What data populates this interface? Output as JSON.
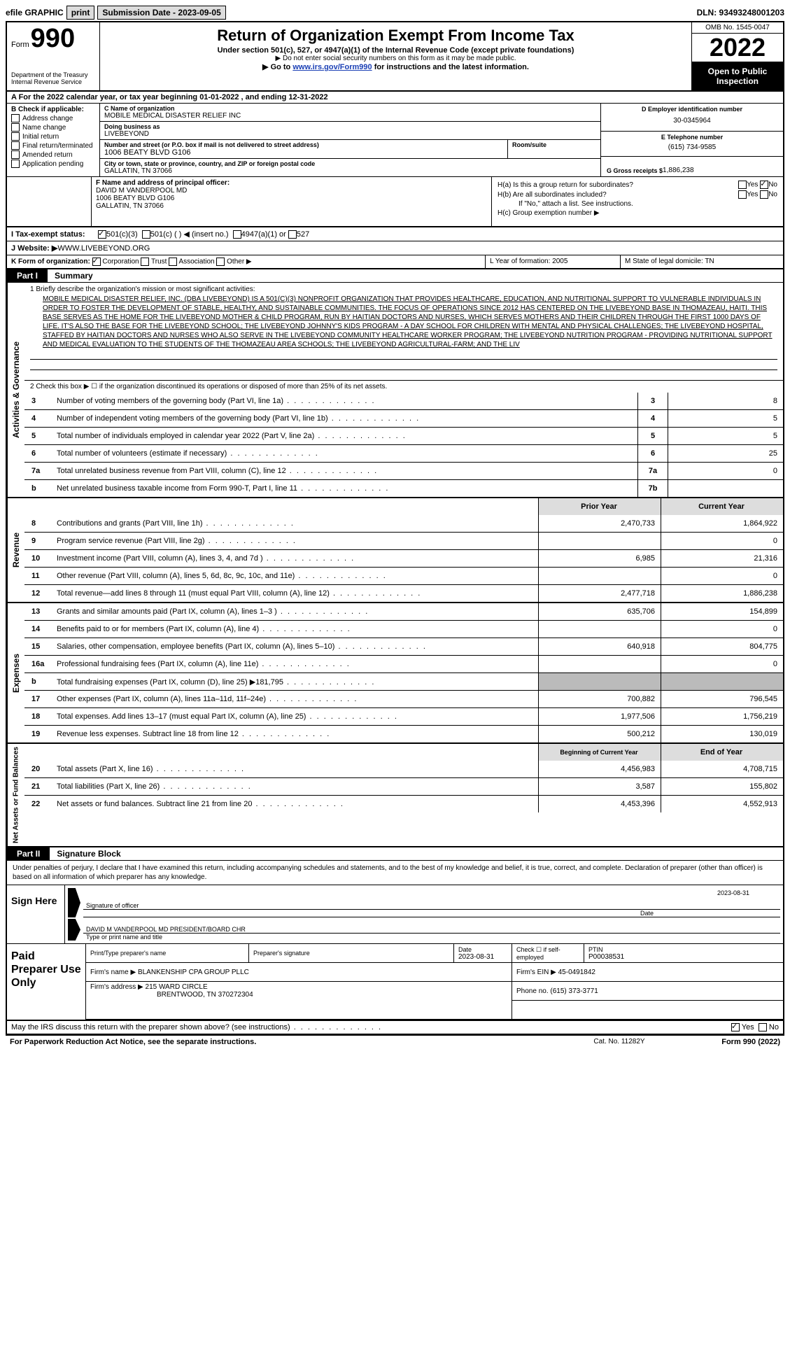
{
  "topbar": {
    "efile": "efile GRAPHIC",
    "print": "print",
    "subdate_label": "Submission Date - ",
    "subdate": "2023-09-05",
    "dln": "DLN: 93493248001203"
  },
  "header": {
    "formword": "Form",
    "formnum": "990",
    "dept": "Department of the Treasury Internal Revenue Service",
    "title": "Return of Organization Exempt From Income Tax",
    "subtitle": "Under section 501(c), 527, or 4947(a)(1) of the Internal Revenue Code (except private foundations)",
    "note1": "▶ Do not enter social security numbers on this form as it may be made public.",
    "goto_pre": "▶ Go to ",
    "goto_link": "www.irs.gov/Form990",
    "goto_post": " for instructions and the latest information.",
    "omb": "OMB No. 1545-0047",
    "year": "2022",
    "opento": "Open to Public Inspection"
  },
  "rowA": "A For the 2022 calendar year, or tax year beginning 01-01-2022   , and ending 12-31-2022",
  "colB": {
    "label": "B Check if applicable:",
    "items": [
      "Address change",
      "Name change",
      "Initial return",
      "Final return/terminated",
      "Amended return",
      "Application pending"
    ]
  },
  "colC": {
    "namelabel": "C Name of organization",
    "name": "MOBILE MEDICAL DISASTER RELIEF INC",
    "dbalabel": "Doing business as",
    "dba": "LIVEBEYOND",
    "addrlabel": "Number and street (or P.O. box if mail is not delivered to street address)",
    "addr": "1006 BEATY BLVD G106",
    "roomlabel": "Room/suite",
    "citylabel": "City or town, state or province, country, and ZIP or foreign postal code",
    "city": "GALLATIN, TN  37066"
  },
  "colD": {
    "label": "D Employer identification number",
    "val": "30-0345964"
  },
  "colE": {
    "label": "E Telephone number",
    "val": "(615) 734-9585"
  },
  "colG": {
    "label": "G Gross receipts $",
    "val": "1,886,238"
  },
  "colF": {
    "label": "F  Name and address of principal officer:",
    "lines": [
      "DAVID M VANDERPOOL MD",
      "1006 BEATY BLVD G106",
      "GALLATIN, TN  37066"
    ]
  },
  "colH": {
    "a": "H(a)  Is this a group return for subordinates?",
    "b": "H(b)  Are all subordinates included?",
    "bnote": "If \"No,\" attach a list. See instructions.",
    "c": "H(c)  Group exemption number ▶"
  },
  "rowI": {
    "label": "I   Tax-exempt status:",
    "opts": [
      "501(c)(3)",
      "501(c) (  ) ◀ (insert no.)",
      "4947(a)(1) or",
      "527"
    ]
  },
  "rowJ": {
    "label": "J  Website: ▶",
    "val": "  WWW.LIVEBEYOND.ORG"
  },
  "rowK": {
    "left": "K Form of organization:",
    "opts": [
      "Corporation",
      "Trust",
      "Association",
      "Other ▶"
    ],
    "mid": "L Year of formation: 2005",
    "right": "M State of legal domicile: TN"
  },
  "part1": {
    "tab": "Part I",
    "title": "Summary",
    "q1label": "1   Briefly describe the organization's mission or most significant activities:",
    "mission": "MOBILE MEDICAL DISASTER RELIEF, INC. (DBA LIVEBEYOND) IS A 501(C)(3) NONPROFIT ORGANIZATION THAT PROVIDES HEALTHCARE, EDUCATION, AND NUTRITIONAL SUPPORT TO VULNERABLE INDIVIDUALS IN ORDER TO FOSTER THE DEVELOPMENT OF STABLE, HEALTHY, AND SUSTAINABLE COMMUNITIES. THE FOCUS OF OPERATIONS SINCE 2012 HAS CENTERED ON THE LIVEBEYOND BASE IN THOMAZEAU, HAITI. THIS BASE SERVES AS THE HOME FOR THE LIVEBEYOND MOTHER & CHILD PROGRAM, RUN BY HAITIAN DOCTORS AND NURSES, WHICH SERVES MOTHERS AND THEIR CHILDREN THROUGH THE FIRST 1000 DAYS OF LIFE. IT'S ALSO THE BASE FOR THE LIVEBEYOND SCHOOL; THE LIVEBEYOND JOHNNY'S KIDS PROGRAM - A DAY SCHOOL FOR CHILDREN WITH MENTAL AND PHYSICAL CHALLENGES; THE LIVEBEYOND HOSPITAL, STAFFED BY HAITIAN DOCTORS AND NURSES WHO ALSO SERVE IN THE LIVEBEYOND COMMUNITY HEALTHCARE WORKER PROGRAM; THE LIVEBEYOND NUTRITION PROGRAM - PROVIDING NUTRITIONAL SUPPORT AND MEDICAL EVALUATION TO THE STUDENTS OF THE THOMAZEAU AREA SCHOOLS; THE LIVEBEYOND AGRICULTURAL-FARM; AND THE LIV",
    "q2": "2   Check this box ▶ ☐ if the organization discontinued its operations or disposed of more than 25% of its net assets.",
    "side1": "Activities & Governance",
    "side2": "Revenue",
    "side3": "Expenses",
    "side4": "Net Assets or Fund Balances"
  },
  "gov_rows": [
    {
      "n": "3",
      "d": "Number of voting members of the governing body (Part VI, line 1a)",
      "c": "3",
      "v": "8"
    },
    {
      "n": "4",
      "d": "Number of independent voting members of the governing body (Part VI, line 1b)",
      "c": "4",
      "v": "5"
    },
    {
      "n": "5",
      "d": "Total number of individuals employed in calendar year 2022 (Part V, line 2a)",
      "c": "5",
      "v": "5"
    },
    {
      "n": "6",
      "d": "Total number of volunteers (estimate if necessary)",
      "c": "6",
      "v": "25"
    },
    {
      "n": "7a",
      "d": "Total unrelated business revenue from Part VIII, column (C), line 12",
      "c": "7a",
      "v": "0"
    },
    {
      "n": "b",
      "d": "Net unrelated business taxable income from Form 990-T, Part I, line 11",
      "c": "7b",
      "v": ""
    }
  ],
  "rev_hdr": {
    "py": "Prior Year",
    "cy": "Current Year"
  },
  "rev_rows": [
    {
      "n": "8",
      "d": "Contributions and grants (Part VIII, line 1h)",
      "py": "2,470,733",
      "cy": "1,864,922"
    },
    {
      "n": "9",
      "d": "Program service revenue (Part VIII, line 2g)",
      "py": "",
      "cy": "0"
    },
    {
      "n": "10",
      "d": "Investment income (Part VIII, column (A), lines 3, 4, and 7d )",
      "py": "6,985",
      "cy": "21,316"
    },
    {
      "n": "11",
      "d": "Other revenue (Part VIII, column (A), lines 5, 6d, 8c, 9c, 10c, and 11e)",
      "py": "",
      "cy": "0"
    },
    {
      "n": "12",
      "d": "Total revenue—add lines 8 through 11 (must equal Part VIII, column (A), line 12)",
      "py": "2,477,718",
      "cy": "1,886,238"
    }
  ],
  "exp_rows": [
    {
      "n": "13",
      "d": "Grants and similar amounts paid (Part IX, column (A), lines 1–3 )",
      "py": "635,706",
      "cy": "154,899"
    },
    {
      "n": "14",
      "d": "Benefits paid to or for members (Part IX, column (A), line 4)",
      "py": "",
      "cy": "0"
    },
    {
      "n": "15",
      "d": "Salaries, other compensation, employee benefits (Part IX, column (A), lines 5–10)",
      "py": "640,918",
      "cy": "804,775"
    },
    {
      "n": "16a",
      "d": "Professional fundraising fees (Part IX, column (A), line 11e)",
      "py": "",
      "cy": "0"
    },
    {
      "n": "b",
      "d": "Total fundraising expenses (Part IX, column (D), line 25) ▶181,795",
      "py": "GREY",
      "cy": "GREY"
    },
    {
      "n": "17",
      "d": "Other expenses (Part IX, column (A), lines 11a–11d, 11f–24e)",
      "py": "700,882",
      "cy": "796,545"
    },
    {
      "n": "18",
      "d": "Total expenses. Add lines 13–17 (must equal Part IX, column (A), line 25)",
      "py": "1,977,506",
      "cy": "1,756,219"
    },
    {
      "n": "19",
      "d": "Revenue less expenses. Subtract line 18 from line 12",
      "py": "500,212",
      "cy": "130,019"
    }
  ],
  "na_hdr": {
    "py": "Beginning of Current Year",
    "cy": "End of Year"
  },
  "na_rows": [
    {
      "n": "20",
      "d": "Total assets (Part X, line 16)",
      "py": "4,456,983",
      "cy": "4,708,715"
    },
    {
      "n": "21",
      "d": "Total liabilities (Part X, line 26)",
      "py": "3,587",
      "cy": "155,802"
    },
    {
      "n": "22",
      "d": "Net assets or fund balances. Subtract line 21 from line 20",
      "py": "4,453,396",
      "cy": "4,552,913"
    }
  ],
  "part2": {
    "tab": "Part II",
    "title": "Signature Block",
    "text": "Under penalties of perjury, I declare that I have examined this return, including accompanying schedules and statements, and to the best of my knowledge and belief, it is true, correct, and complete. Declaration of preparer (other than officer) is based on all information of which preparer has any knowledge."
  },
  "sign": {
    "here": "Sign Here",
    "date": "2023-08-31",
    "sigof": "Signature of officer",
    "datel": "Date",
    "name": "DAVID M VANDERPOOL MD  PRESIDENT/BOARD CHR",
    "typel": "Type or print name and title"
  },
  "paid": {
    "label": "Paid Preparer Use Only",
    "h1": "Print/Type preparer's name",
    "h2": "Preparer's signature",
    "h3": "Date",
    "h3v": "2023-08-31",
    "h4": "Check ☐ if self-employed",
    "h5": "PTIN",
    "h5v": "P00038531",
    "firmname_l": "Firm's name    ▶",
    "firmname": "BLANKENSHIP CPA GROUP PLLC",
    "ein_l": "Firm's EIN ▶",
    "ein": "45-0491842",
    "firmaddr_l": "Firm's address ▶",
    "firmaddr1": "215 WARD CIRCLE",
    "firmaddr2": "BRENTWOOD, TN  370272304",
    "phone_l": "Phone no.",
    "phone": "(615) 373-3771"
  },
  "discuss": "May the IRS discuss this return with the preparer shown above? (see instructions)",
  "foot": {
    "left": "For Paperwork Reduction Act Notice, see the separate instructions.",
    "mid": "Cat. No. 11282Y",
    "right": "Form 990 (2022)"
  }
}
